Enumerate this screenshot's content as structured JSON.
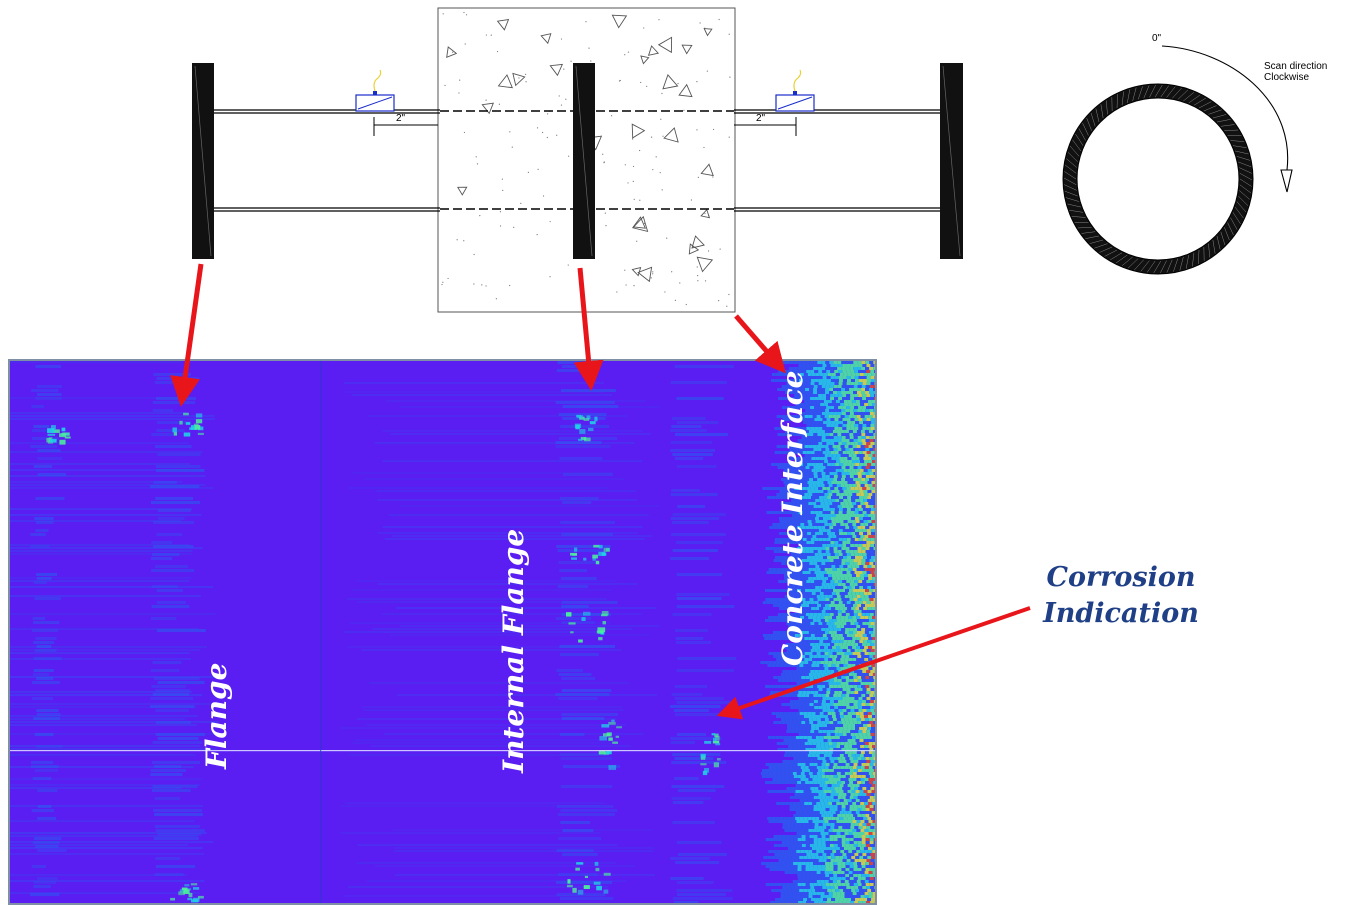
{
  "pipe_drawing": {
    "dimension_left": "2\"",
    "dimension_right": "2\""
  },
  "ring_diagram": {
    "zero_label": "0\"",
    "scan_direction_line1": "Scan direction",
    "scan_direction_line2": "Clockwise"
  },
  "scan_image": {
    "labels": {
      "flange": "Flange",
      "internal_flange": "Internal Flange",
      "concrete_interface": "Concrete Interface"
    },
    "colors": {
      "background": "#5a1df2",
      "low": "#2a5cf0",
      "mid": "#1fd2e6",
      "high": "#4cf29a",
      "peak": "#d8e83a",
      "hot": "#e04a2a"
    }
  },
  "callout": {
    "corrosion_line1": "Corrosion",
    "corrosion_line2": "Indication"
  },
  "arrow_color": "#e8161b"
}
